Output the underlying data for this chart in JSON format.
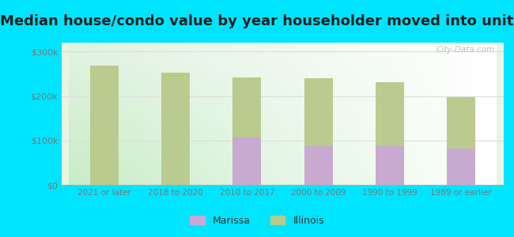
{
  "title": "Median house/condo value by year householder moved into unit",
  "categories": [
    "2021 or later",
    "2018 to 2020",
    "2010 to 2017",
    "2000 to 2009",
    "1990 to 1999",
    "1989 or earlier"
  ],
  "marissa_values": [
    null,
    null,
    107000,
    88000,
    87000,
    82000
  ],
  "illinois_values": [
    268000,
    252000,
    242000,
    240000,
    232000,
    198000
  ],
  "marissa_color": "#c9a8d4",
  "illinois_color": "#b8c98a",
  "background_outer": "#00e5ff",
  "background_inner_topleft": "#e8f5e9",
  "background_inner_bottomright": "#ffffff",
  "ylim": [
    0,
    320000
  ],
  "yticks": [
    0,
    100000,
    200000,
    300000
  ],
  "ytick_labels": [
    "$0",
    "$100k",
    "$200k",
    "$300k"
  ],
  "bar_width": 0.4,
  "legend_marissa": "Marissa",
  "legend_illinois": "Illinois",
  "title_fontsize": 13,
  "watermark": "City-Data.com",
  "grid_color": "#dddddd",
  "tick_color": "#777777"
}
